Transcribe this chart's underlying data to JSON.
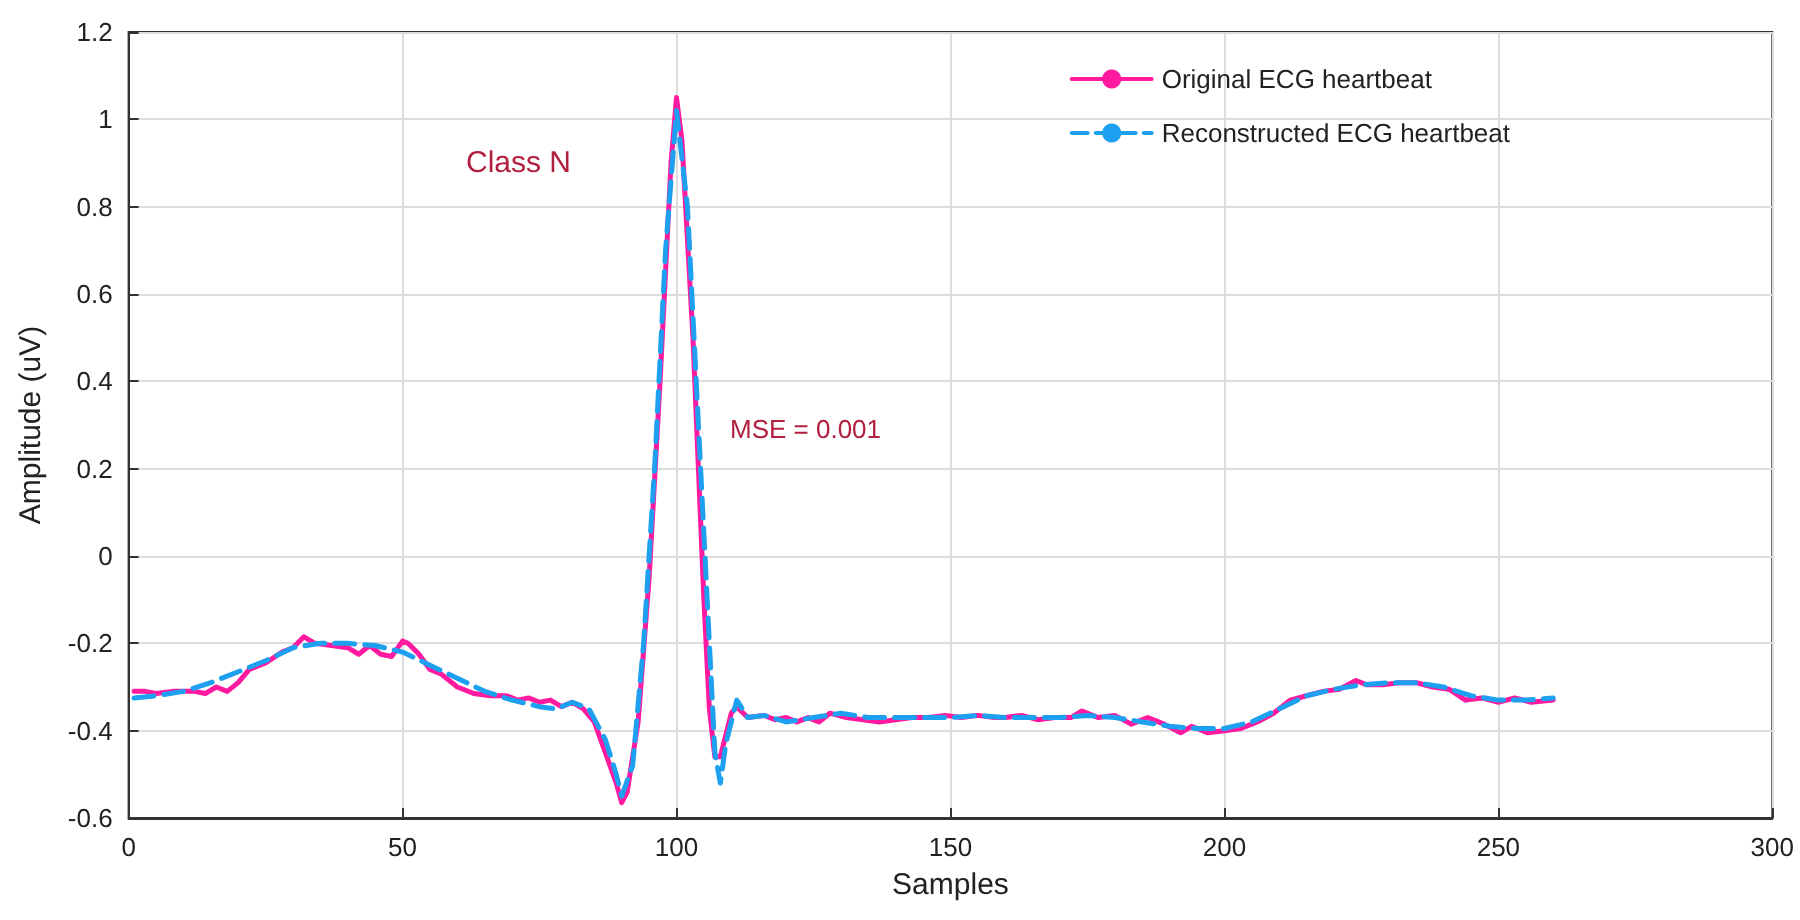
{
  "chart_data": {
    "type": "line",
    "xlabel": "Samples",
    "ylabel": "Amplitude (uV)",
    "xlim": [
      0,
      300
    ],
    "xticks": [
      0,
      50,
      100,
      150,
      200,
      250,
      300
    ],
    "ylim": [
      -0.6,
      1.2
    ],
    "yticks": [
      -0.6,
      -0.4,
      -0.2,
      0,
      0.2,
      0.4,
      0.6,
      0.8,
      1,
      1.2
    ],
    "grid": true,
    "legend": "top right",
    "marker": "none",
    "annotations": [
      "Class N",
      "MSE = 0.001"
    ],
    "series": [
      {
        "name": "Original ECG heartbeat",
        "color": "#ff1aa0",
        "line_style": "solid",
        "x": [
          1,
          3,
          5,
          8,
          12,
          14,
          16,
          18,
          20,
          22,
          25,
          28,
          30,
          32,
          34,
          37,
          40,
          42,
          44,
          46,
          48,
          50,
          51,
          53,
          55,
          57,
          60,
          63,
          66,
          69,
          71,
          73,
          75,
          77,
          79,
          81,
          83,
          85,
          87,
          89,
          90,
          91,
          93,
          95,
          97,
          99,
          100,
          101,
          103,
          105,
          106,
          107,
          108,
          110,
          111,
          113,
          116,
          118,
          120,
          122,
          124,
          126,
          128,
          131,
          134,
          137,
          140,
          143,
          146,
          149,
          152,
          155,
          158,
          160,
          163,
          166,
          169,
          172,
          174,
          177,
          180,
          183,
          186,
          189,
          192,
          194,
          197,
          200,
          203,
          206,
          209,
          212,
          215,
          218,
          221,
          224,
          226,
          229,
          232,
          235,
          238,
          241,
          244,
          247,
          250,
          253,
          256,
          260
        ],
        "values": [
          -0.31,
          -0.31,
          -0.315,
          -0.31,
          -0.31,
          -0.315,
          -0.3,
          -0.31,
          -0.29,
          -0.26,
          -0.245,
          -0.22,
          -0.21,
          -0.185,
          -0.2,
          -0.205,
          -0.21,
          -0.225,
          -0.205,
          -0.225,
          -0.23,
          -0.195,
          -0.2,
          -0.225,
          -0.26,
          -0.27,
          -0.3,
          -0.315,
          -0.32,
          -0.32,
          -0.33,
          -0.325,
          -0.335,
          -0.33,
          -0.345,
          -0.335,
          -0.35,
          -0.38,
          -0.45,
          -0.52,
          -0.565,
          -0.54,
          -0.38,
          -0.05,
          0.4,
          0.9,
          1.05,
          0.95,
          0.5,
          -0.1,
          -0.35,
          -0.46,
          -0.46,
          -0.36,
          -0.345,
          -0.37,
          -0.365,
          -0.375,
          -0.37,
          -0.38,
          -0.37,
          -0.38,
          -0.36,
          -0.37,
          -0.375,
          -0.38,
          -0.375,
          -0.37,
          -0.37,
          -0.365,
          -0.37,
          -0.365,
          -0.37,
          -0.37,
          -0.365,
          -0.375,
          -0.37,
          -0.37,
          -0.355,
          -0.37,
          -0.365,
          -0.385,
          -0.37,
          -0.385,
          -0.405,
          -0.39,
          -0.405,
          -0.4,
          -0.395,
          -0.38,
          -0.36,
          -0.33,
          -0.32,
          -0.31,
          -0.305,
          -0.285,
          -0.295,
          -0.295,
          -0.29,
          -0.29,
          -0.3,
          -0.305,
          -0.33,
          -0.325,
          -0.335,
          -0.325,
          -0.335,
          -0.33
        ]
      },
      {
        "name": "Reconstructed ECG heartbeat",
        "color": "#1ea0f0",
        "line_style": "dashed",
        "x": [
          1,
          5,
          10,
          15,
          20,
          25,
          30,
          35,
          40,
          45,
          50,
          55,
          60,
          65,
          70,
          75,
          78,
          81,
          84,
          87,
          89,
          90,
          92,
          94,
          96,
          98,
          100,
          102,
          104,
          106,
          107,
          108,
          109,
          111,
          113,
          116,
          120,
          125,
          130,
          135,
          140,
          145,
          150,
          155,
          160,
          165,
          170,
          175,
          180,
          185,
          190,
          195,
          200,
          205,
          210,
          215,
          220,
          225,
          230,
          235,
          240,
          245,
          250,
          255,
          260
        ],
        "values": [
          -0.325,
          -0.32,
          -0.31,
          -0.29,
          -0.265,
          -0.24,
          -0.21,
          -0.2,
          -0.2,
          -0.205,
          -0.22,
          -0.25,
          -0.28,
          -0.31,
          -0.33,
          -0.345,
          -0.35,
          -0.335,
          -0.35,
          -0.42,
          -0.5,
          -0.55,
          -0.48,
          -0.2,
          0.2,
          0.7,
          1.02,
          0.8,
          0.3,
          -0.2,
          -0.45,
          -0.52,
          -0.43,
          -0.33,
          -0.37,
          -0.365,
          -0.38,
          -0.37,
          -0.36,
          -0.37,
          -0.37,
          -0.37,
          -0.37,
          -0.365,
          -0.37,
          -0.37,
          -0.37,
          -0.365,
          -0.37,
          -0.38,
          -0.39,
          -0.395,
          -0.395,
          -0.38,
          -0.35,
          -0.32,
          -0.305,
          -0.295,
          -0.29,
          -0.29,
          -0.3,
          -0.32,
          -0.33,
          -0.33,
          -0.325
        ]
      }
    ]
  }
}
